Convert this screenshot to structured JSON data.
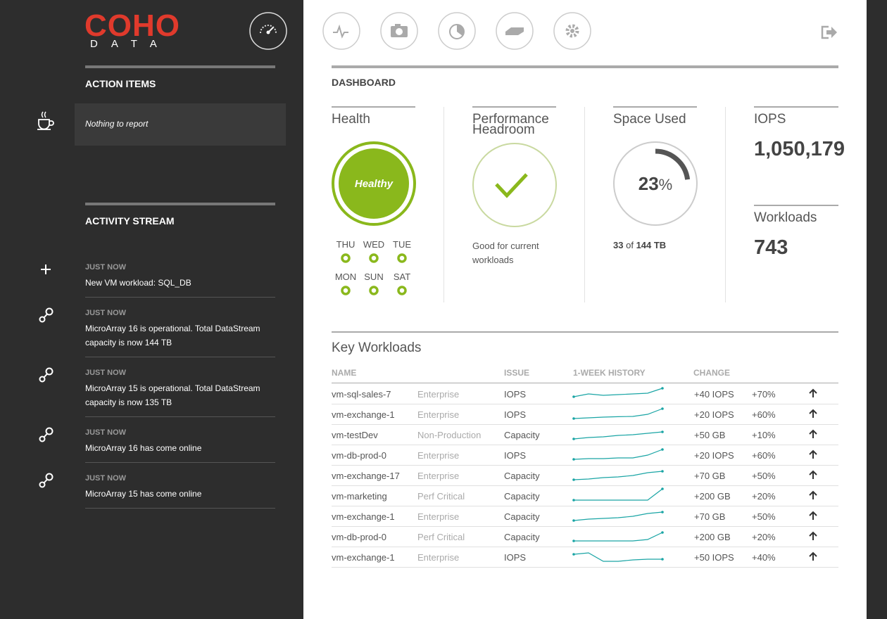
{
  "sidebar": {
    "logo": {
      "name": "COHO",
      "sub": "DATA"
    },
    "action_items": {
      "title": "ACTION ITEMS",
      "message": "Nothing to report"
    },
    "activity_stream": {
      "title": "ACTIVITY STREAM",
      "items": [
        {
          "time": "JUST NOW",
          "text": "New VM workload: SQL_DB"
        },
        {
          "time": "JUST NOW",
          "text": "MicroArray 16 is operational. Total DataStream capacity is now 144 TB"
        },
        {
          "time": "JUST NOW",
          "text": "MicroArray 15 is operational. Total DataStream capacity is now 135 TB"
        },
        {
          "time": "JUST NOW",
          "text": "MicroArray 16 has come online"
        },
        {
          "time": "JUST NOW",
          "text": "MicroArray 15 has come online"
        }
      ]
    }
  },
  "dashboard": {
    "title": "DASHBOARD",
    "health": {
      "title": "Health",
      "status": "Healthy",
      "days": [
        "THU",
        "WED",
        "TUE",
        "MON",
        "SUN",
        "SAT"
      ]
    },
    "performance": {
      "title": "Performance Headroom",
      "note": "Good for current workloads"
    },
    "space": {
      "title": "Space Used",
      "percent": 23,
      "percent_sign": "%",
      "used": "33",
      "of": "of",
      "total": "144 TB"
    },
    "iops": {
      "title": "IOPS",
      "value": "1,050,179"
    },
    "workloads": {
      "title": "Workloads",
      "value": "743"
    }
  },
  "key_workloads": {
    "title": "Key Workloads",
    "columns": [
      "NAME",
      "ISSUE",
      "1-WEEK HISTORY",
      "CHANGE"
    ],
    "rows": [
      {
        "name": "vm-sql-sales-7",
        "class": "Enterprise",
        "issue": "IOPS",
        "history": [
          2,
          4,
          3,
          3.5,
          4,
          4.5,
          8
        ],
        "change": "+40 IOPS",
        "pct": "+70%"
      },
      {
        "name": "vm-exchange-1",
        "class": "Enterprise",
        "issue": "IOPS",
        "history": [
          1,
          1.5,
          2,
          2.3,
          2.5,
          4,
          8
        ],
        "change": "+20 IOPS",
        "pct": "+60%"
      },
      {
        "name": "vm-testDev",
        "class": "Non-Production",
        "issue": "Capacity",
        "history": [
          1,
          2,
          2.5,
          3.5,
          4,
          5,
          6
        ],
        "change": "+50 GB",
        "pct": "+10%"
      },
      {
        "name": "vm-db-prod-0",
        "class": "Enterprise",
        "issue": "IOPS",
        "history": [
          1,
          1.5,
          1.5,
          2,
          2,
          4,
          8
        ],
        "change": "+20 IOPS",
        "pct": "+60%"
      },
      {
        "name": "vm-exchange-17",
        "class": "Enterprise",
        "issue": "Capacity",
        "history": [
          1,
          1.5,
          2.5,
          3,
          4,
          6,
          7
        ],
        "change": "+70 GB",
        "pct": "+50%"
      },
      {
        "name": "vm-marketing",
        "class": "Perf Critical",
        "issue": "Capacity",
        "history": [
          1,
          1,
          1,
          1,
          1,
          1,
          9
        ],
        "change": "+200 GB",
        "pct": "+20%"
      },
      {
        "name": "vm-exchange-1",
        "class": "Enterprise",
        "issue": "Capacity",
        "history": [
          1,
          2,
          2.5,
          3,
          4,
          6,
          7
        ],
        "change": "+70 GB",
        "pct": "+50%"
      },
      {
        "name": "vm-db-prod-0",
        "class": "Perf Critical",
        "issue": "Capacity",
        "history": [
          1,
          1,
          1,
          1,
          1,
          2,
          7
        ],
        "change": "+200 GB",
        "pct": "+20%"
      },
      {
        "name": "vm-exchange-1",
        "class": "Enterprise",
        "issue": "IOPS",
        "history": [
          6,
          7,
          1,
          1,
          2,
          2.5,
          2.5
        ],
        "change": "+50 IOPS",
        "pct": "+40%"
      }
    ]
  }
}
